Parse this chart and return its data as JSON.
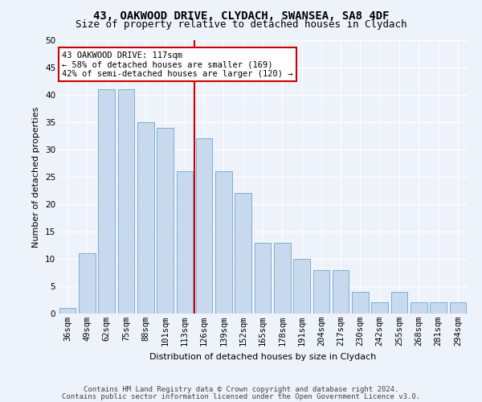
{
  "title_line1": "43, OAKWOOD DRIVE, CLYDACH, SWANSEA, SA8 4DF",
  "title_line2": "Size of property relative to detached houses in Clydach",
  "xlabel": "Distribution of detached houses by size in Clydach",
  "ylabel": "Number of detached properties",
  "categories": [
    "36sqm",
    "49sqm",
    "62sqm",
    "75sqm",
    "88sqm",
    "101sqm",
    "113sqm",
    "126sqm",
    "139sqm",
    "152sqm",
    "165sqm",
    "178sqm",
    "191sqm",
    "204sqm",
    "217sqm",
    "230sqm",
    "242sqm",
    "255sqm",
    "268sqm",
    "281sqm",
    "294sqm"
  ],
  "values": [
    1,
    11,
    41,
    41,
    35,
    34,
    26,
    32,
    26,
    22,
    13,
    13,
    10,
    8,
    8,
    4,
    2,
    4,
    2,
    2,
    2
  ],
  "bar_color": "#c9d9ed",
  "bar_edge_color": "#7aafd4",
  "vline_x_index": 6.5,
  "vline_color": "#cc0000",
  "annotation_line1": "43 OAKWOOD DRIVE: 117sqm",
  "annotation_line2": "← 58% of detached houses are smaller (169)",
  "annotation_line3": "42% of semi-detached houses are larger (120) →",
  "annotation_box_color": "#cc0000",
  "ylim": [
    0,
    50
  ],
  "yticks": [
    0,
    5,
    10,
    15,
    20,
    25,
    30,
    35,
    40,
    45,
    50
  ],
  "footer_line1": "Contains HM Land Registry data © Crown copyright and database right 2024.",
  "footer_line2": "Contains public sector information licensed under the Open Government Licence v3.0.",
  "background_color": "#eef2fa",
  "grid_color": "#ffffff",
  "title_fontsize": 10,
  "subtitle_fontsize": 9,
  "axis_label_fontsize": 8,
  "tick_fontsize": 7.5,
  "annotation_fontsize": 7.5,
  "footer_fontsize": 6.5
}
